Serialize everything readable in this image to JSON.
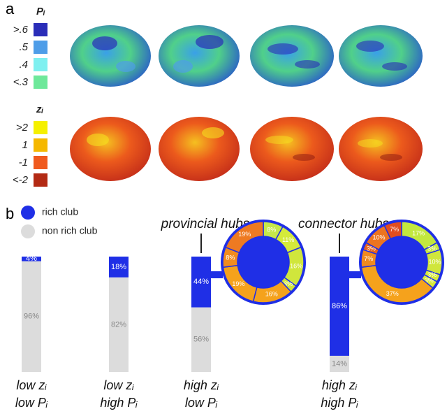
{
  "panel_a": {
    "label": "a",
    "legends": [
      {
        "title": "Pᵢ",
        "items": [
          {
            "label": ">.6",
            "color": "#2a2db8"
          },
          {
            "label": ".5",
            "color": "#4e9de8"
          },
          {
            "label": ".4",
            "color": "#7ff0f0"
          },
          {
            "label": "<.3",
            "color": "#6ee89a"
          }
        ]
      },
      {
        "title": "zᵢ",
        "items": [
          {
            "label": ">2",
            "color": "#f5f000"
          },
          {
            "label": "1",
            "color": "#f5b800"
          },
          {
            "label": "-1",
            "color": "#f05a1e"
          },
          {
            "label": "<-2",
            "color": "#b32a14"
          }
        ]
      }
    ]
  },
  "panel_b": {
    "label": "b"
  },
  "chart_data": [
    {
      "type": "stacked_bar",
      "categories": [
        [
          "low zᵢ",
          "low Pᵢ"
        ],
        [
          "low zᵢ",
          "high Pᵢ"
        ],
        [
          "high zᵢ",
          "low Pᵢ"
        ],
        [
          "high zᵢ",
          "high Pᵢ"
        ]
      ],
      "series": [
        {
          "name": "rich club",
          "color": "#1f2fe6",
          "values": [
            4,
            18,
            44,
            86
          ],
          "value_labels": [
            "4%",
            "18%",
            "44%",
            "86%"
          ]
        },
        {
          "name": "non rich club",
          "color": "#dcdcdc",
          "values": [
            96,
            82,
            56,
            14
          ],
          "value_labels": [
            "96%",
            "82%",
            "56%",
            "14%"
          ]
        }
      ]
    },
    {
      "type": "donut",
      "title": "provincial hubs",
      "values": [
        8,
        11,
        16,
        3,
        16,
        19,
        8,
        19
      ],
      "value_labels": [
        "8%",
        "11%",
        "16%",
        "3%",
        "16%",
        "19%",
        "8%",
        "19%"
      ],
      "colors": [
        "#c5e84a",
        "#d4ea3a",
        "#d0e63c",
        "#d0e63c",
        "#f5a21c",
        "#f5a21c",
        "#f28c1e",
        "#ee7a22"
      ]
    },
    {
      "type": "donut",
      "title": "connector hubs",
      "values": [
        17,
        3,
        10,
        3,
        3,
        37,
        7,
        3,
        10,
        7
      ],
      "value_labels": [
        "17%",
        "3%",
        "10%",
        "3%",
        "3%",
        "37%",
        "7%",
        "3%",
        "10%",
        "7%"
      ],
      "colors": [
        "#c3e83e",
        "#c8e83e",
        "#d0e63c",
        "#d7ea3a",
        "#d7ea3a",
        "#f5a21c",
        "#f08a1f",
        "#e8641f",
        "#ec7420",
        "#e24d1f"
      ]
    }
  ]
}
